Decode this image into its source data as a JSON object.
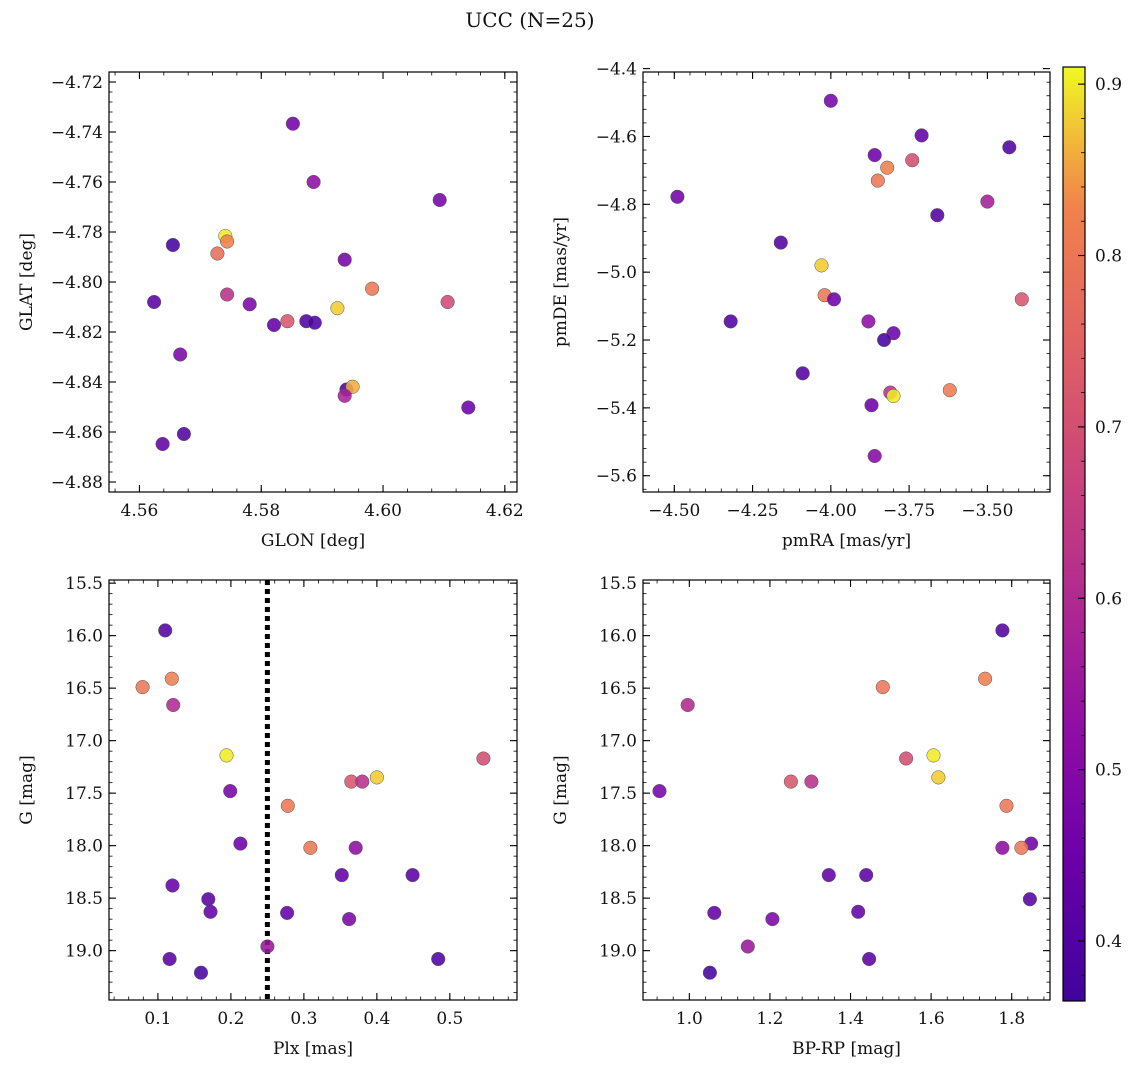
{
  "figure": {
    "title": "UCC (N=25)"
  },
  "colors": {
    "colormap": "plasma",
    "point_edge": "#555555"
  },
  "colorbar": {
    "range": [
      0.365,
      0.91
    ],
    "ticks": [
      0.4,
      0.5,
      0.6,
      0.7,
      0.8,
      0.9
    ],
    "tick_labels": [
      "0.4",
      "0.5",
      "0.6",
      "0.7",
      "0.8",
      "0.9"
    ]
  },
  "chart_data": [
    {
      "type": "scatter",
      "xlabel": "GLON [deg]",
      "ylabel": "GLAT [deg]",
      "xlim": [
        4.555,
        4.622
      ],
      "ylim": [
        -4.884,
        -4.716
      ],
      "x_ticks": [
        4.56,
        4.58,
        4.6,
        4.62
      ],
      "x_tick_labels": [
        "4.56",
        "4.58",
        "4.60",
        "4.62"
      ],
      "y_ticks": [
        -4.72,
        -4.74,
        -4.76,
        -4.78,
        -4.8,
        -4.82,
        -4.84,
        -4.86,
        -4.88
      ],
      "y_tick_labels": [
        "−4.72",
        "−4.74",
        "−4.76",
        "−4.78",
        "−4.80",
        "−4.82",
        "−4.84",
        "−4.86",
        "−4.88"
      ],
      "points": [
        {
          "x": 4.5852,
          "y": -4.7367,
          "c": 0.46
        },
        {
          "x": 4.5886,
          "y": -4.76,
          "c": 0.52
        },
        {
          "x": 4.6093,
          "y": -4.7672,
          "c": 0.47
        },
        {
          "x": 4.5741,
          "y": -4.7816,
          "c": 0.9
        },
        {
          "x": 4.5744,
          "y": -4.7838,
          "c": 0.82
        },
        {
          "x": 4.5655,
          "y": -4.7852,
          "c": 0.38
        },
        {
          "x": 4.5728,
          "y": -4.7886,
          "c": 0.78
        },
        {
          "x": 4.5937,
          "y": -4.7911,
          "c": 0.47
        },
        {
          "x": 4.5982,
          "y": -4.8027,
          "c": 0.8
        },
        {
          "x": 4.5744,
          "y": -4.805,
          "c": 0.62
        },
        {
          "x": 4.5624,
          "y": -4.808,
          "c": 0.42
        },
        {
          "x": 4.6106,
          "y": -4.808,
          "c": 0.69
        },
        {
          "x": 4.5781,
          "y": -4.8089,
          "c": 0.48
        },
        {
          "x": 4.5925,
          "y": -4.8105,
          "c": 0.88
        },
        {
          "x": 4.5821,
          "y": -4.8172,
          "c": 0.43
        },
        {
          "x": 4.5843,
          "y": -4.8157,
          "c": 0.72
        },
        {
          "x": 4.5874,
          "y": -4.8157,
          "c": 0.4
        },
        {
          "x": 4.5888,
          "y": -4.8163,
          "c": 0.39
        },
        {
          "x": 4.5667,
          "y": -4.829,
          "c": 0.48
        },
        {
          "x": 4.594,
          "y": -4.843,
          "c": 0.39
        },
        {
          "x": 4.595,
          "y": -4.8419,
          "c": 0.86
        },
        {
          "x": 4.5937,
          "y": -4.8455,
          "c": 0.58
        },
        {
          "x": 4.614,
          "y": -4.8502,
          "c": 0.45
        },
        {
          "x": 4.5673,
          "y": -4.8608,
          "c": 0.4
        },
        {
          "x": 4.5638,
          "y": -4.8648,
          "c": 0.43
        }
      ]
    },
    {
      "type": "scatter",
      "xlabel": "pmRA [mas/yr]",
      "ylabel": "pmDE [mas/yr]",
      "xlim": [
        -4.6,
        -3.3
      ],
      "ylim": [
        -5.648,
        -4.41
      ],
      "x_ticks": [
        -4.5,
        -4.25,
        -4.0,
        -3.75,
        -3.5
      ],
      "x_tick_labels": [
        "−4.50",
        "−4.25",
        "−4.00",
        "−3.75",
        "−3.50"
      ],
      "y_ticks": [
        -4.4,
        -4.6,
        -4.8,
        -5.0,
        -5.2,
        -5.4,
        -5.6
      ],
      "y_tick_labels": [
        "−4.4",
        "−4.6",
        "−4.8",
        "−5.0",
        "−5.2",
        "−5.4",
        "−5.6"
      ],
      "points": [
        {
          "x": -4.0,
          "y": -4.495,
          "c": 0.47
        },
        {
          "x": -3.71,
          "y": -4.597,
          "c": 0.43
        },
        {
          "x": -3.43,
          "y": -4.632,
          "c": 0.4
        },
        {
          "x": -3.86,
          "y": -4.655,
          "c": 0.45
        },
        {
          "x": -3.74,
          "y": -4.67,
          "c": 0.7
        },
        {
          "x": -3.82,
          "y": -4.692,
          "c": 0.82
        },
        {
          "x": -3.85,
          "y": -4.73,
          "c": 0.8
        },
        {
          "x": -4.49,
          "y": -4.778,
          "c": 0.46
        },
        {
          "x": -3.5,
          "y": -4.792,
          "c": 0.57
        },
        {
          "x": -3.66,
          "y": -4.832,
          "c": 0.4
        },
        {
          "x": -4.16,
          "y": -4.913,
          "c": 0.4
        },
        {
          "x": -4.03,
          "y": -4.98,
          "c": 0.88
        },
        {
          "x": -4.02,
          "y": -5.068,
          "c": 0.8
        },
        {
          "x": -3.99,
          "y": -5.08,
          "c": 0.45
        },
        {
          "x": -3.39,
          "y": -5.08,
          "c": 0.72
        },
        {
          "x": -4.32,
          "y": -5.145,
          "c": 0.4
        },
        {
          "x": -3.88,
          "y": -5.145,
          "c": 0.52
        },
        {
          "x": -3.8,
          "y": -5.18,
          "c": 0.45
        },
        {
          "x": -3.83,
          "y": -5.2,
          "c": 0.38
        },
        {
          "x": -4.09,
          "y": -5.298,
          "c": 0.4
        },
        {
          "x": -3.62,
          "y": -5.348,
          "c": 0.81
        },
        {
          "x": -3.81,
          "y": -5.355,
          "c": 0.62
        },
        {
          "x": -3.8,
          "y": -5.365,
          "c": 0.9
        },
        {
          "x": -3.87,
          "y": -5.392,
          "c": 0.45
        },
        {
          "x": -3.86,
          "y": -5.542,
          "c": 0.5
        }
      ]
    },
    {
      "type": "scatter",
      "xlabel": "Plx [mas]",
      "ylabel": "G [mag]",
      "xlim": [
        0.033,
        0.592
      ],
      "ylim": [
        19.47,
        15.47
      ],
      "x_ticks": [
        0.1,
        0.2,
        0.3,
        0.4,
        0.5
      ],
      "x_tick_labels": [
        "0.1",
        "0.2",
        "0.3",
        "0.4",
        "0.5"
      ],
      "y_ticks": [
        15.5,
        16.0,
        16.5,
        17.0,
        17.5,
        18.0,
        18.5,
        19.0
      ],
      "y_tick_labels": [
        "15.5",
        "16.0",
        "16.5",
        "17.0",
        "17.5",
        "18.0",
        "18.5",
        "19.0"
      ],
      "vline": 0.25,
      "points": [
        {
          "x": 0.11,
          "y": 15.95,
          "c": 0.4
        },
        {
          "x": 0.079,
          "y": 16.49,
          "c": 0.8
        },
        {
          "x": 0.119,
          "y": 16.41,
          "c": 0.82
        },
        {
          "x": 0.121,
          "y": 16.66,
          "c": 0.6
        },
        {
          "x": 0.194,
          "y": 17.14,
          "c": 0.9
        },
        {
          "x": 0.546,
          "y": 17.17,
          "c": 0.7
        },
        {
          "x": 0.4,
          "y": 17.35,
          "c": 0.88
        },
        {
          "x": 0.365,
          "y": 17.39,
          "c": 0.72
        },
        {
          "x": 0.38,
          "y": 17.39,
          "c": 0.62
        },
        {
          "x": 0.199,
          "y": 17.48,
          "c": 0.47
        },
        {
          "x": 0.278,
          "y": 17.62,
          "c": 0.8
        },
        {
          "x": 0.213,
          "y": 17.98,
          "c": 0.45
        },
        {
          "x": 0.309,
          "y": 18.02,
          "c": 0.8
        },
        {
          "x": 0.371,
          "y": 18.02,
          "c": 0.52
        },
        {
          "x": 0.352,
          "y": 18.28,
          "c": 0.43
        },
        {
          "x": 0.449,
          "y": 18.28,
          "c": 0.42
        },
        {
          "x": 0.12,
          "y": 18.38,
          "c": 0.44
        },
        {
          "x": 0.169,
          "y": 18.51,
          "c": 0.41
        },
        {
          "x": 0.172,
          "y": 18.63,
          "c": 0.43
        },
        {
          "x": 0.277,
          "y": 18.64,
          "c": 0.43
        },
        {
          "x": 0.362,
          "y": 18.7,
          "c": 0.48
        },
        {
          "x": 0.25,
          "y": 18.96,
          "c": 0.55
        },
        {
          "x": 0.116,
          "y": 19.08,
          "c": 0.42
        },
        {
          "x": 0.484,
          "y": 19.08,
          "c": 0.39
        },
        {
          "x": 0.159,
          "y": 19.21,
          "c": 0.38
        }
      ]
    },
    {
      "type": "scatter",
      "xlabel": "BP-RP [mag]",
      "ylabel": "G [mag]",
      "xlim": [
        0.885,
        1.895
      ],
      "ylim": [
        19.47,
        15.47
      ],
      "x_ticks": [
        1.0,
        1.2,
        1.4,
        1.6,
        1.8
      ],
      "x_tick_labels": [
        "1.0",
        "1.2",
        "1.4",
        "1.6",
        "1.8"
      ],
      "y_ticks": [
        15.5,
        16.0,
        16.5,
        17.0,
        17.5,
        18.0,
        18.5,
        19.0
      ],
      "y_tick_labels": [
        "15.5",
        "16.0",
        "16.5",
        "17.0",
        "17.5",
        "18.0",
        "18.5",
        "19.0"
      ],
      "points": [
        {
          "x": 1.777,
          "y": 15.95,
          "c": 0.4
        },
        {
          "x": 1.48,
          "y": 16.49,
          "c": 0.8
        },
        {
          "x": 1.734,
          "y": 16.41,
          "c": 0.82
        },
        {
          "x": 0.996,
          "y": 16.66,
          "c": 0.6
        },
        {
          "x": 1.606,
          "y": 17.14,
          "c": 0.9
        },
        {
          "x": 1.538,
          "y": 17.17,
          "c": 0.7
        },
        {
          "x": 1.618,
          "y": 17.35,
          "c": 0.88
        },
        {
          "x": 1.252,
          "y": 17.39,
          "c": 0.72
        },
        {
          "x": 1.303,
          "y": 17.39,
          "c": 0.62
        },
        {
          "x": 0.926,
          "y": 17.48,
          "c": 0.47
        },
        {
          "x": 1.787,
          "y": 17.62,
          "c": 0.8
        },
        {
          "x": 1.848,
          "y": 17.98,
          "c": 0.45
        },
        {
          "x": 1.824,
          "y": 18.02,
          "c": 0.8
        },
        {
          "x": 1.777,
          "y": 18.02,
          "c": 0.52
        },
        {
          "x": 1.346,
          "y": 18.28,
          "c": 0.43
        },
        {
          "x": 1.439,
          "y": 18.28,
          "c": 0.42
        },
        {
          "x": 1.845,
          "y": 18.51,
          "c": 0.41
        },
        {
          "x": 1.419,
          "y": 18.63,
          "c": 0.43
        },
        {
          "x": 1.062,
          "y": 18.64,
          "c": 0.43
        },
        {
          "x": 1.206,
          "y": 18.7,
          "c": 0.48
        },
        {
          "x": 1.145,
          "y": 18.96,
          "c": 0.55
        },
        {
          "x": 1.446,
          "y": 19.08,
          "c": 0.42
        },
        {
          "x": 1.051,
          "y": 19.21,
          "c": 0.38
        }
      ]
    }
  ]
}
